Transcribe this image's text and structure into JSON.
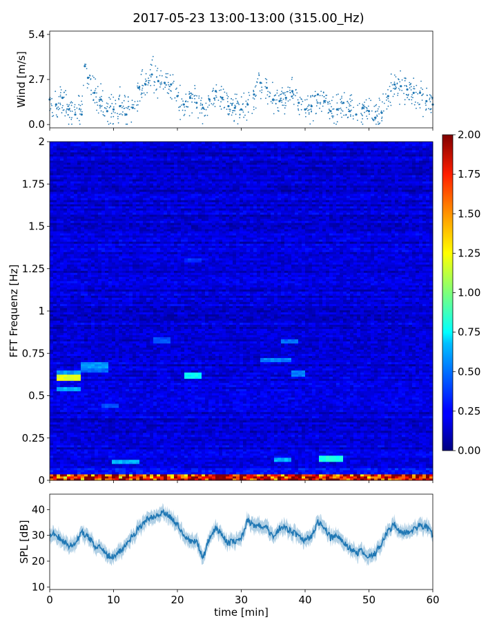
{
  "title": "2017-05-23 13:00-13:00 (315.00_Hz)",
  "chart_data": [
    {
      "type": "scatter",
      "panel": "wind",
      "ylabel": "Wind [m/s]",
      "xlim": [
        0,
        60
      ],
      "ylim": [
        -0.2,
        5.6
      ],
      "yticks": [
        0.0,
        2.7,
        5.4
      ],
      "ytick_labels": [
        "0.0",
        "2.7",
        "5.4"
      ],
      "marker_color": "#1f77b4",
      "series": [
        {
          "values": [
            {
              "x": 0,
              "y": 1.5
            },
            {
              "x": 1,
              "y": 1.2
            },
            {
              "x": 2,
              "y": 1.6
            },
            {
              "x": 3,
              "y": 0.9
            },
            {
              "x": 4,
              "y": 0.6
            },
            {
              "x": 5,
              "y": 0.6
            },
            {
              "x": 5.5,
              "y": 3.5
            },
            {
              "x": 6,
              "y": 2.8
            },
            {
              "x": 7,
              "y": 1.9
            },
            {
              "x": 8,
              "y": 1.5
            },
            {
              "x": 9,
              "y": 0.8
            },
            {
              "x": 10,
              "y": 0.9
            },
            {
              "x": 11,
              "y": 1.1
            },
            {
              "x": 12,
              "y": 0.6
            },
            {
              "x": 13,
              "y": 1.0
            },
            {
              "x": 14,
              "y": 2.2
            },
            {
              "x": 15,
              "y": 2.4
            },
            {
              "x": 16,
              "y": 3.0
            },
            {
              "x": 17,
              "y": 2.6
            },
            {
              "x": 18,
              "y": 2.5
            },
            {
              "x": 19,
              "y": 2.4
            },
            {
              "x": 20,
              "y": 1.7
            },
            {
              "x": 21,
              "y": 1.2
            },
            {
              "x": 22,
              "y": 1.6
            },
            {
              "x": 23,
              "y": 1.3
            },
            {
              "x": 24,
              "y": 1.0
            },
            {
              "x": 25,
              "y": 1.5
            },
            {
              "x": 26,
              "y": 2.0
            },
            {
              "x": 27,
              "y": 1.6
            },
            {
              "x": 28,
              "y": 1.1
            },
            {
              "x": 29,
              "y": 1.0
            },
            {
              "x": 30,
              "y": 0.9
            },
            {
              "x": 31,
              "y": 1.2
            },
            {
              "x": 32,
              "y": 1.8
            },
            {
              "x": 33,
              "y": 2.5
            },
            {
              "x": 34,
              "y": 2.2
            },
            {
              "x": 35,
              "y": 1.5
            },
            {
              "x": 36,
              "y": 1.4
            },
            {
              "x": 37,
              "y": 1.6
            },
            {
              "x": 38,
              "y": 2.0
            },
            {
              "x": 39,
              "y": 1.3
            },
            {
              "x": 40,
              "y": 0.9
            },
            {
              "x": 41,
              "y": 1.1
            },
            {
              "x": 42,
              "y": 1.8
            },
            {
              "x": 43,
              "y": 1.4
            },
            {
              "x": 44,
              "y": 0.8
            },
            {
              "x": 45,
              "y": 0.9
            },
            {
              "x": 46,
              "y": 1.3
            },
            {
              "x": 47,
              "y": 0.8
            },
            {
              "x": 48,
              "y": 0.6
            },
            {
              "x": 49,
              "y": 1.0
            },
            {
              "x": 50,
              "y": 0.8
            },
            {
              "x": 51,
              "y": 0.4
            },
            {
              "x": 52,
              "y": 0.7
            },
            {
              "x": 53,
              "y": 1.7
            },
            {
              "x": 54,
              "y": 2.4
            },
            {
              "x": 55,
              "y": 2.3
            },
            {
              "x": 56,
              "y": 2.1
            },
            {
              "x": 57,
              "y": 1.9
            },
            {
              "x": 58,
              "y": 1.9
            },
            {
              "x": 59,
              "y": 1.4
            },
            {
              "x": 60,
              "y": 1.2
            }
          ]
        }
      ]
    },
    {
      "type": "heatmap",
      "panel": "spectrogram",
      "ylabel": "FFT Frequenz [Hz]",
      "xlim": [
        0,
        60
      ],
      "ylim": [
        0,
        2
      ],
      "yticks": [
        0,
        0.25,
        0.5,
        0.75,
        1,
        1.25,
        1.5,
        1.75,
        2
      ],
      "ytick_labels": [
        "0",
        "0.25",
        "0.5",
        "0.75",
        "1",
        "1.25",
        "1.5",
        "1.75",
        "2"
      ],
      "colormap": "jet",
      "colorbar": {
        "vmin": 0,
        "vmax": 2,
        "ticks": [
          0,
          0.25,
          0.5,
          0.75,
          1,
          1.25,
          1.5,
          1.75,
          2
        ],
        "tick_labels": [
          "0.00",
          "0.25",
          "0.50",
          "0.75",
          "1.00",
          "1.25",
          "1.50",
          "1.75",
          "2.00"
        ]
      },
      "background_level": 0.17,
      "hotspots": [
        {
          "t0": 1,
          "t1": 5,
          "f": 0.61,
          "v": 1.2
        },
        {
          "t0": 1,
          "t1": 5,
          "f": 0.54,
          "v": 0.6
        },
        {
          "t0": 1,
          "t1": 5,
          "f": 0.64,
          "v": 0.55
        },
        {
          "t0": 5,
          "t1": 9,
          "f": 0.68,
          "v": 0.55
        },
        {
          "t0": 5,
          "t1": 9,
          "f": 0.65,
          "v": 0.45
        },
        {
          "t0": 8,
          "t1": 11,
          "f": 0.44,
          "v": 0.4
        },
        {
          "t0": 21,
          "t1": 24,
          "f": 0.62,
          "v": 0.75
        },
        {
          "t0": 21,
          "t1": 24,
          "f": 1.3,
          "v": 0.35
        },
        {
          "t0": 16,
          "t1": 19,
          "f": 0.83,
          "v": 0.4
        },
        {
          "t0": 33,
          "t1": 38,
          "f": 0.71,
          "v": 0.5
        },
        {
          "t0": 36,
          "t1": 39,
          "f": 0.82,
          "v": 0.45
        },
        {
          "t0": 38,
          "t1": 40,
          "f": 0.63,
          "v": 0.5
        },
        {
          "t0": 42,
          "t1": 46,
          "f": 0.13,
          "v": 0.8
        },
        {
          "t0": 10,
          "t1": 14,
          "f": 0.11,
          "v": 0.6
        },
        {
          "t0": 35,
          "t1": 38,
          "f": 0.12,
          "v": 0.6
        }
      ]
    },
    {
      "type": "area",
      "panel": "spl",
      "ylabel": "SPL [dB]",
      "xlabel": "time [min]",
      "xlim": [
        0,
        60
      ],
      "ylim": [
        9,
        46
      ],
      "yticks": [
        10,
        20,
        30,
        40
      ],
      "ytick_labels": [
        "10",
        "20",
        "30",
        "40"
      ],
      "xticks": [
        0,
        10,
        20,
        30,
        40,
        50,
        60
      ],
      "xtick_labels": [
        "0",
        "10",
        "20",
        "30",
        "40",
        "50",
        "60"
      ],
      "line_color": "#1f77b4",
      "series": [
        {
          "values": [
            {
              "x": 0,
              "y": 31
            },
            {
              "x": 1,
              "y": 30
            },
            {
              "x": 2,
              "y": 28
            },
            {
              "x": 3,
              "y": 26
            },
            {
              "x": 4,
              "y": 27
            },
            {
              "x": 5,
              "y": 31
            },
            {
              "x": 6,
              "y": 30
            },
            {
              "x": 7,
              "y": 26
            },
            {
              "x": 8,
              "y": 26
            },
            {
              "x": 9,
              "y": 22
            },
            {
              "x": 10,
              "y": 22
            },
            {
              "x": 11,
              "y": 24
            },
            {
              "x": 12,
              "y": 26
            },
            {
              "x": 13,
              "y": 30
            },
            {
              "x": 14,
              "y": 33
            },
            {
              "x": 15,
              "y": 36
            },
            {
              "x": 16,
              "y": 37
            },
            {
              "x": 17,
              "y": 38
            },
            {
              "x": 18,
              "y": 39
            },
            {
              "x": 19,
              "y": 37
            },
            {
              "x": 20,
              "y": 34
            },
            {
              "x": 21,
              "y": 30
            },
            {
              "x": 22,
              "y": 28
            },
            {
              "x": 23,
              "y": 28
            },
            {
              "x": 24,
              "y": 21
            },
            {
              "x": 25,
              "y": 29
            },
            {
              "x": 26,
              "y": 33
            },
            {
              "x": 27,
              "y": 30
            },
            {
              "x": 28,
              "y": 27
            },
            {
              "x": 29,
              "y": 28
            },
            {
              "x": 30,
              "y": 29
            },
            {
              "x": 31,
              "y": 36
            },
            {
              "x": 32,
              "y": 33
            },
            {
              "x": 33,
              "y": 34
            },
            {
              "x": 34,
              "y": 33
            },
            {
              "x": 35,
              "y": 29
            },
            {
              "x": 36,
              "y": 33
            },
            {
              "x": 37,
              "y": 33
            },
            {
              "x": 38,
              "y": 31
            },
            {
              "x": 39,
              "y": 30
            },
            {
              "x": 40,
              "y": 28
            },
            {
              "x": 41,
              "y": 30
            },
            {
              "x": 42,
              "y": 35
            },
            {
              "x": 43,
              "y": 33
            },
            {
              "x": 44,
              "y": 29
            },
            {
              "x": 45,
              "y": 30
            },
            {
              "x": 46,
              "y": 27
            },
            {
              "x": 47,
              "y": 25
            },
            {
              "x": 48,
              "y": 23
            },
            {
              "x": 49,
              "y": 24
            },
            {
              "x": 50,
              "y": 22
            },
            {
              "x": 51,
              "y": 23
            },
            {
              "x": 52,
              "y": 27
            },
            {
              "x": 53,
              "y": 32
            },
            {
              "x": 54,
              "y": 34
            },
            {
              "x": 55,
              "y": 31
            },
            {
              "x": 56,
              "y": 31
            },
            {
              "x": 57,
              "y": 32
            },
            {
              "x": 58,
              "y": 34
            },
            {
              "x": 59,
              "y": 33
            },
            {
              "x": 60,
              "y": 30
            }
          ]
        }
      ]
    }
  ]
}
